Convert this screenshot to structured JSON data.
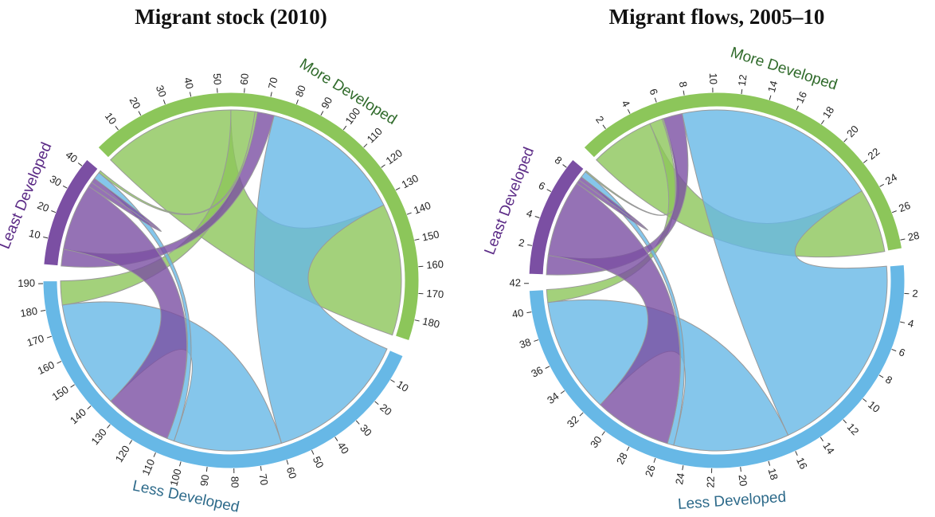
{
  "chart_data": [
    {
      "type": "chord",
      "title": "Migrant stock (2010)",
      "groups": [
        {
          "name": "More Developed",
          "color": "#8cc65a",
          "label_color": "#2f6a2a",
          "ticks": [
            10,
            20,
            30,
            40,
            50,
            60,
            70,
            80,
            90,
            100,
            110,
            120,
            130,
            140,
            150,
            160,
            170,
            180
          ]
        },
        {
          "name": "Less Developed",
          "color": "#67b8e6",
          "label_color": "#2d6a8a",
          "ticks": [
            10,
            20,
            30,
            40,
            50,
            60,
            70,
            80,
            90,
            100,
            110,
            120,
            130,
            140,
            150,
            160,
            170,
            180,
            190
          ]
        },
        {
          "name": "Least Developed",
          "color": "#7b4fa3",
          "label_color": "#5b2a86",
          "ticks": [
            10,
            20,
            30,
            40
          ]
        }
      ],
      "matrix": [
        [
          55,
          10,
          1
        ],
        [
          60,
          45,
          3
        ],
        [
          7,
          28,
          2
        ]
      ]
    },
    {
      "type": "chord",
      "title": "Migrant flows, 2005–10",
      "groups": [
        {
          "name": "More Developed",
          "color": "#8cc65a",
          "label_color": "#2f6a2a",
          "ticks": [
            2,
            4,
            6,
            8,
            10,
            12,
            14,
            16,
            18,
            20,
            22,
            24,
            26,
            28
          ]
        },
        {
          "name": "Less Developed",
          "color": "#67b8e6",
          "label_color": "#2d6a8a",
          "ticks": [
            2,
            4,
            6,
            8,
            10,
            12,
            14,
            16,
            18,
            20,
            22,
            24,
            26,
            28,
            30,
            32,
            34,
            36,
            38,
            40,
            42
          ]
        },
        {
          "name": "Least Developed",
          "color": "#7b4fa3",
          "label_color": "#5b2a86",
          "ticks": [
            2,
            4,
            6,
            8
          ]
        }
      ],
      "matrix": [
        [
          5,
          1,
          0.1
        ],
        [
          16,
          9,
          0.5
        ],
        [
          1.5,
          6,
          0.3
        ]
      ]
    }
  ]
}
